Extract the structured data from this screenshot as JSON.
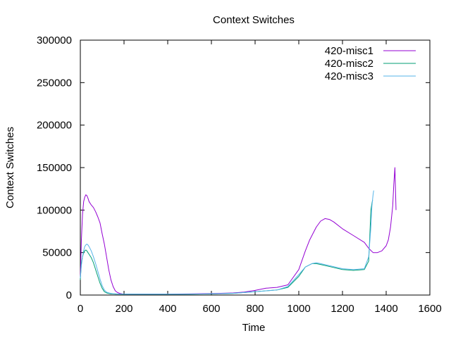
{
  "chart_data": {
    "type": "line",
    "title": "Context Switches",
    "xlabel": "Time",
    "ylabel": "Context Switches",
    "xlim": [
      0,
      1600
    ],
    "ylim": [
      0,
      300000
    ],
    "xticks": [
      0,
      200,
      400,
      600,
      800,
      1000,
      1200,
      1400,
      1600
    ],
    "yticks": [
      0,
      50000,
      100000,
      150000,
      200000,
      250000,
      300000
    ],
    "grid": false,
    "legend_position": "top-right",
    "series": [
      {
        "name": "420-misc1",
        "color": "#9400d3",
        "x": [
          0,
          5,
          10,
          15,
          20,
          25,
          30,
          35,
          40,
          50,
          60,
          70,
          80,
          90,
          100,
          110,
          120,
          130,
          140,
          150,
          160,
          170,
          180,
          190,
          200,
          250,
          300,
          400,
          500,
          600,
          700,
          750,
          800,
          850,
          900,
          950,
          1000,
          1030,
          1050,
          1080,
          1100,
          1120,
          1140,
          1160,
          1200,
          1250,
          1300,
          1320,
          1340,
          1360,
          1380,
          1400,
          1410,
          1420,
          1430,
          1435,
          1440,
          1445
        ],
        "y": [
          20000,
          65000,
          95000,
          110000,
          115000,
          118000,
          117000,
          114000,
          110000,
          106000,
          103000,
          98000,
          92000,
          85000,
          72000,
          60000,
          45000,
          30000,
          18000,
          10000,
          5000,
          3000,
          2000,
          1500,
          1200,
          1000,
          1000,
          1100,
          1300,
          1700,
          2500,
          3500,
          5500,
          8000,
          9000,
          12000,
          30000,
          52000,
          65000,
          80000,
          87000,
          90000,
          89000,
          86000,
          78000,
          70000,
          62000,
          55000,
          50000,
          50000,
          52000,
          58000,
          65000,
          80000,
          105000,
          130000,
          150000,
          100000
        ]
      },
      {
        "name": "420-misc2",
        "color": "#009e73",
        "x": [
          0,
          5,
          10,
          15,
          20,
          25,
          30,
          35,
          40,
          50,
          60,
          70,
          80,
          90,
          100,
          110,
          120,
          130,
          140,
          150,
          160,
          180,
          200,
          300,
          400,
          500,
          600,
          700,
          750,
          800,
          850,
          900,
          950,
          1000,
          1030,
          1060,
          1080,
          1100,
          1150,
          1200,
          1250,
          1300,
          1320,
          1325,
          1330,
          1335,
          1338
        ],
        "y": [
          18000,
          38000,
          45000,
          50000,
          52000,
          53000,
          52000,
          50000,
          48000,
          44000,
          38000,
          30000,
          22000,
          14000,
          8000,
          4000,
          2500,
          1800,
          1500,
          1300,
          1200,
          1100,
          1000,
          900,
          900,
          1000,
          1300,
          2000,
          3000,
          4000,
          5000,
          6000,
          9000,
          22000,
          33000,
          37000,
          37000,
          36000,
          33000,
          30000,
          29000,
          30000,
          40000,
          70000,
          100000,
          108000,
          112000
        ]
      },
      {
        "name": "420-misc3",
        "color": "#56b4e9",
        "x": [
          0,
          5,
          10,
          15,
          20,
          25,
          30,
          35,
          40,
          50,
          60,
          70,
          80,
          90,
          100,
          110,
          120,
          130,
          140,
          150,
          160,
          180,
          200,
          300,
          400,
          500,
          600,
          700,
          750,
          800,
          850,
          900,
          950,
          1000,
          1030,
          1060,
          1080,
          1100,
          1150,
          1200,
          1250,
          1300,
          1320,
          1330,
          1335,
          1340,
          1343
        ],
        "y": [
          20000,
          35000,
          45000,
          52000,
          57000,
          59000,
          60000,
          59000,
          57000,
          52000,
          45000,
          37000,
          28000,
          19000,
          11000,
          6000,
          3500,
          2500,
          2000,
          1600,
          1400,
          1200,
          1100,
          1000,
          1000,
          1100,
          1400,
          2100,
          3000,
          4000,
          5000,
          6000,
          10000,
          24000,
          33000,
          37000,
          38000,
          37000,
          34000,
          31000,
          30000,
          31000,
          45000,
          80000,
          105000,
          118000,
          123000
        ]
      }
    ]
  }
}
